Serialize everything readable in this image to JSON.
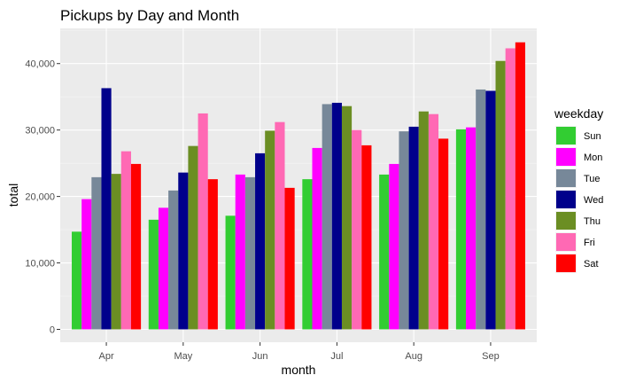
{
  "chart_data": {
    "type": "bar",
    "title": "Pickups by Day and Month",
    "xlabel": "month",
    "ylabel": "total",
    "categories": [
      "Apr",
      "May",
      "Jun",
      "Jul",
      "Aug",
      "Sep"
    ],
    "ylim": [
      0,
      44500
    ],
    "yticks": [
      0,
      10000,
      20000,
      30000,
      40000
    ],
    "ytick_labels": [
      "0",
      "10,000",
      "20,000",
      "30,000",
      "40,000"
    ],
    "grid": true,
    "legend": {
      "title": "weekday",
      "position": "right"
    },
    "series": [
      {
        "name": "Sun",
        "color": "#32CD32",
        "values": [
          14700,
          16500,
          17100,
          22600,
          23300,
          30100
        ]
      },
      {
        "name": "Mon",
        "color": "#FF00FF",
        "values": [
          19600,
          18300,
          23300,
          27300,
          24900,
          30400
        ]
      },
      {
        "name": "Tue",
        "color": "#778899",
        "values": [
          22900,
          20900,
          22900,
          33900,
          29800,
          36100
        ]
      },
      {
        "name": "Wed",
        "color": "#00008B",
        "values": [
          36300,
          23600,
          26500,
          34100,
          30500,
          35900
        ]
      },
      {
        "name": "Thu",
        "color": "#6B8E23",
        "values": [
          23400,
          27600,
          29900,
          33600,
          32800,
          40400
        ]
      },
      {
        "name": "Fri",
        "color": "#FF69B4",
        "values": [
          26800,
          32500,
          31200,
          30000,
          32400,
          42300
        ]
      },
      {
        "name": "Sat",
        "color": "#FF0000",
        "values": [
          24900,
          22600,
          21300,
          27700,
          28700,
          43200
        ]
      }
    ]
  }
}
